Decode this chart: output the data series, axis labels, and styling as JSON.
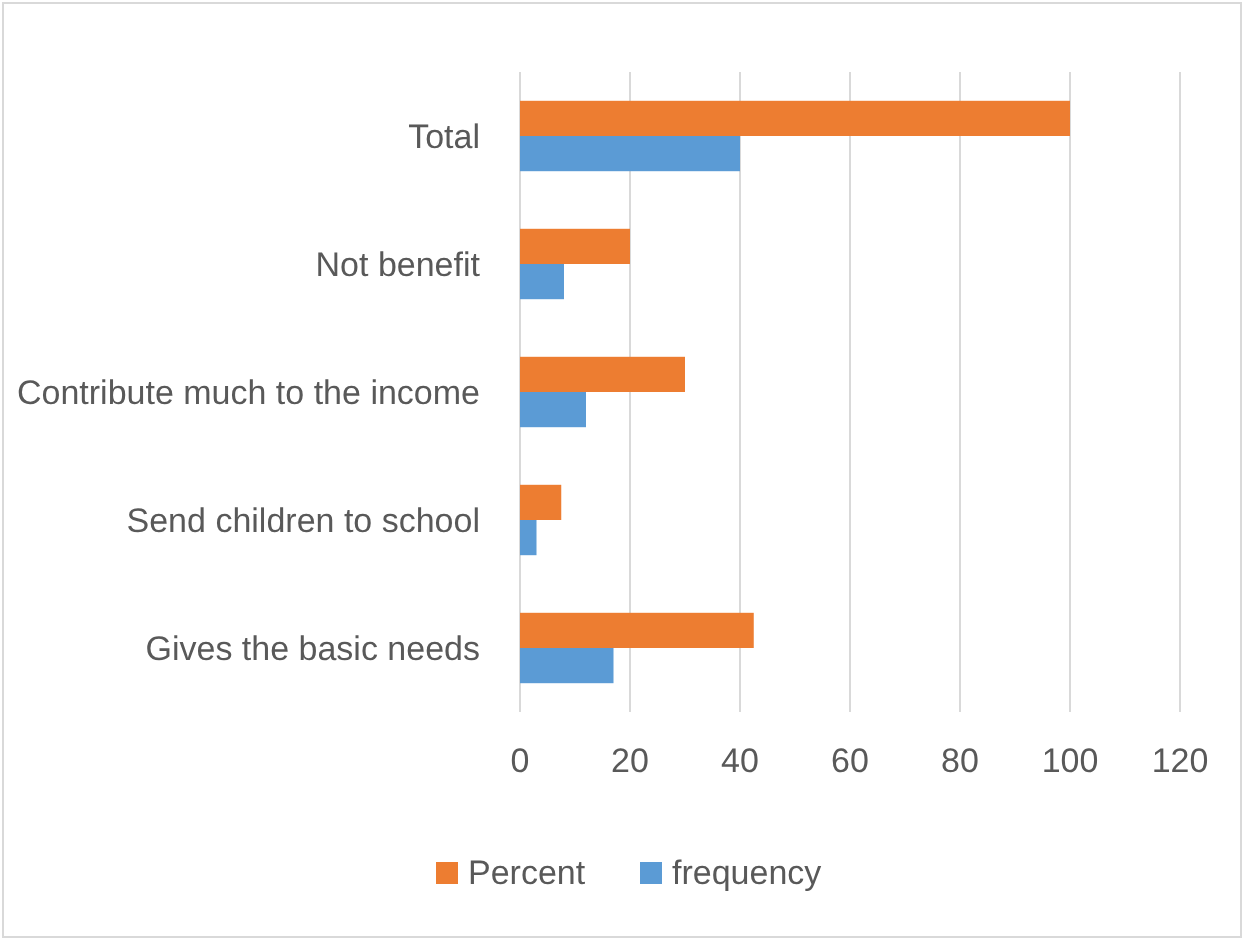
{
  "chart_data": {
    "type": "bar",
    "orientation": "horizontal",
    "categories": [
      "Total",
      "Not benefit",
      "Contribute much to the income",
      "Send children to school",
      "Gives the basic needs"
    ],
    "series": [
      {
        "name": "Percent",
        "color": "#ed7d31",
        "values": [
          100,
          20,
          30,
          7.5,
          42.5
        ]
      },
      {
        "name": "frequency",
        "color": "#5b9bd5",
        "values": [
          40,
          8,
          12,
          3,
          17
        ]
      }
    ],
    "xlim": [
      0,
      120
    ],
    "xticks": [
      0,
      20,
      40,
      60,
      80,
      100,
      120
    ],
    "grid": "x",
    "legend": "bottom"
  }
}
